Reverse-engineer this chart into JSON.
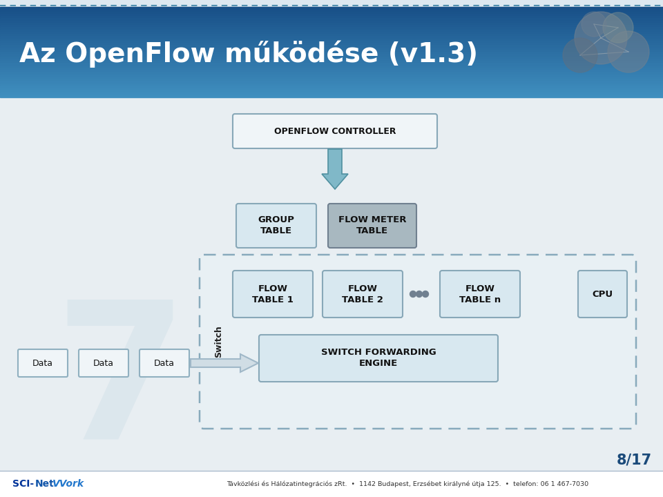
{
  "title": "Az OpenFlow működése (v1.3)",
  "title_color": "#ffffff",
  "title_fontsize": 28,
  "bg_color": "#dde8f0",
  "header_top_color": "#1a5a8a",
  "header_bot_color": "#4090c0",
  "footer_text": "Távközlési és Hálózatintegrációs zRt.  •  1142 Budapest, Erzsébet királyné útja 125.  •  telefon: 06 1 467-7030",
  "page_num": "8/17",
  "controller_label": "OPENFLOW CONTROLLER",
  "group_table_label": "GROUP\nTABLE",
  "flow_meter_label": "FLOW METER\nTABLE",
  "flow_table1_label": "FLOW\nTABLE 1",
  "flow_table2_label": "FLOW\nTABLE 2",
  "flow_tablen_label": "FLOW\nTABLE n",
  "cpu_label": "CPU",
  "switch_label": "Switch",
  "forwarding_label": "SWITCH FORWARDING\nENGINE",
  "data_labels": [
    "Data",
    "Data",
    "Data"
  ],
  "box_light_blue": "#c8dce8",
  "box_gray": "#a8b4bc",
  "box_white": "#f8fafa",
  "box_edge": "#88a8b8",
  "box_dashed_color": "#88aabb",
  "arrow_fill": "#80b8c8",
  "arrow_edge": "#5090a0",
  "data_arrow_fill": "#d0dde5",
  "data_arrow_edge": "#a0b8c8"
}
